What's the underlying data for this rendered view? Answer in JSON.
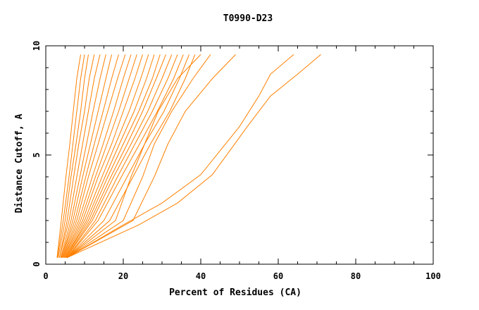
{
  "chart_data": {
    "type": "line",
    "title": "T0990-D23",
    "xlabel": "Percent of Residues (CA)",
    "ylabel": "Distance Cutoff, A",
    "xlim": [
      0,
      100
    ],
    "ylim": [
      0,
      10
    ],
    "x_ticks": [
      0,
      20,
      40,
      60,
      80,
      100
    ],
    "x_tick_labels": [
      "0",
      "20",
      "40",
      "60",
      "80",
      "100"
    ],
    "y_ticks": [
      0,
      5,
      10
    ],
    "y_tick_labels": [
      "0",
      "5",
      "10"
    ],
    "grid": false,
    "legend": "none",
    "line_color": "#ff8000",
    "series": [
      {
        "x": [
          2.9,
          4.0,
          5.2,
          6.2,
          7.1,
          8.0,
          9.0
        ],
        "y": [
          0.3,
          2.0,
          4.0,
          5.5,
          7.0,
          8.5,
          9.6
        ]
      },
      {
        "x": [
          3.0,
          4.5,
          6.0,
          7.0,
          8.0,
          9.0,
          10.0
        ],
        "y": [
          0.3,
          2.0,
          4.0,
          5.5,
          7.0,
          8.5,
          9.6
        ]
      },
      {
        "x": [
          3.2,
          5.0,
          6.5,
          7.8,
          9.0,
          10.0,
          11.0
        ],
        "y": [
          0.3,
          2.0,
          4.0,
          5.5,
          7.0,
          8.5,
          9.6
        ]
      },
      {
        "x": [
          3.5,
          5.5,
          7.2,
          8.5,
          10.0,
          11.2,
          12.5
        ],
        "y": [
          0.3,
          2.0,
          4.0,
          5.5,
          7.0,
          8.5,
          9.6
        ]
      },
      {
        "x": [
          3.5,
          6.0,
          8.0,
          9.5,
          11.0,
          12.5,
          14.0
        ],
        "y": [
          0.3,
          2.0,
          4.0,
          5.5,
          7.0,
          8.5,
          9.6
        ]
      },
      {
        "x": [
          3.8,
          6.5,
          8.8,
          10.5,
          12.2,
          14.0,
          15.5
        ],
        "y": [
          0.3,
          2.0,
          4.0,
          5.5,
          7.0,
          8.5,
          9.6
        ]
      },
      {
        "x": [
          4.0,
          7.0,
          9.5,
          11.5,
          13.5,
          15.5,
          17.0
        ],
        "y": [
          0.3,
          2.0,
          4.0,
          5.5,
          7.0,
          8.5,
          9.6
        ]
      },
      {
        "x": [
          4.0,
          7.5,
          10.3,
          12.5,
          14.8,
          17.0,
          18.8
        ],
        "y": [
          0.3,
          2.0,
          4.0,
          5.5,
          7.0,
          8.5,
          9.6
        ]
      },
      {
        "x": [
          4.2,
          8.0,
          11.0,
          13.5,
          16.0,
          18.5,
          20.5
        ],
        "y": [
          0.3,
          2.0,
          4.0,
          5.5,
          7.0,
          8.5,
          9.6
        ]
      },
      {
        "x": [
          4.3,
          8.5,
          12.0,
          14.8,
          17.5,
          20.0,
          22.0
        ],
        "y": [
          0.3,
          2.0,
          4.0,
          5.5,
          7.0,
          8.5,
          9.6
        ]
      },
      {
        "x": [
          4.5,
          9.0,
          12.8,
          15.8,
          18.8,
          21.5,
          23.5
        ],
        "y": [
          0.3,
          2.0,
          4.0,
          5.5,
          7.0,
          8.5,
          9.6
        ]
      },
      {
        "x": [
          4.6,
          9.5,
          13.5,
          17.0,
          20.0,
          23.0,
          25.0
        ],
        "y": [
          0.3,
          2.0,
          4.0,
          5.5,
          7.0,
          8.5,
          9.6
        ]
      },
      {
        "x": [
          4.8,
          10.0,
          14.5,
          18.0,
          21.5,
          24.5,
          26.5
        ],
        "y": [
          0.3,
          2.0,
          4.0,
          5.5,
          7.0,
          8.5,
          9.6
        ]
      },
      {
        "x": [
          5.0,
          10.5,
          15.3,
          19.0,
          22.8,
          26.0,
          28.0
        ],
        "y": [
          0.3,
          2.0,
          4.0,
          5.5,
          7.0,
          8.5,
          9.6
        ]
      },
      {
        "x": [
          5.0,
          11.0,
          16.0,
          20.0,
          24.0,
          27.5,
          29.5
        ],
        "y": [
          0.3,
          2.0,
          4.0,
          5.5,
          7.0,
          8.5,
          9.6
        ]
      },
      {
        "x": [
          5.2,
          11.5,
          16.8,
          21.0,
          25.0,
          28.5,
          31.0
        ],
        "y": [
          0.3,
          2.0,
          4.0,
          5.5,
          7.0,
          8.5,
          9.6
        ]
      },
      {
        "x": [
          5.3,
          12.0,
          17.5,
          22.0,
          26.3,
          30.0,
          32.5
        ],
        "y": [
          0.3,
          2.0,
          4.0,
          5.5,
          7.0,
          8.5,
          9.6
        ]
      },
      {
        "x": [
          5.5,
          12.8,
          18.5,
          23.0,
          27.5,
          31.5,
          34.0
        ],
        "y": [
          0.3,
          2.0,
          4.0,
          5.5,
          7.0,
          8.5,
          9.6
        ]
      },
      {
        "x": [
          5.5,
          13.5,
          19.5,
          24.2,
          28.8,
          33.0,
          35.5
        ],
        "y": [
          0.3,
          2.0,
          4.0,
          5.5,
          7.0,
          8.5,
          9.6
        ]
      },
      {
        "x": [
          5.5,
          15.0,
          21.0,
          25.5,
          30.5,
          34.5,
          37.0
        ],
        "y": [
          0.3,
          2.0,
          4.0,
          5.5,
          7.0,
          8.5,
          9.6
        ]
      },
      {
        "x": [
          5.5,
          16.5,
          22.5,
          27.0,
          32.0,
          36.0,
          38.5
        ],
        "y": [
          0.3,
          2.0,
          4.0,
          5.5,
          7.0,
          8.5,
          9.6
        ]
      },
      {
        "x": [
          5.5,
          18.0,
          22.0,
          25.5,
          29.0,
          34.0,
          40.0
        ],
        "y": [
          0.3,
          2.0,
          4.0,
          5.5,
          7.0,
          8.5,
          9.6
        ]
      },
      {
        "x": [
          5.5,
          20.0,
          25.0,
          28.0,
          32.5,
          38.0,
          42.5
        ],
        "y": [
          0.3,
          2.0,
          4.0,
          5.5,
          7.0,
          8.5,
          9.6
        ]
      },
      {
        "x": [
          5.5,
          22.5,
          28.0,
          31.5,
          36.0,
          43.0,
          49.0
        ],
        "y": [
          0.3,
          2.0,
          4.0,
          5.5,
          7.0,
          8.5,
          9.6
        ]
      },
      {
        "x": [
          5.5,
          20.0,
          30.0,
          40.0,
          45.0,
          50.0,
          55.0,
          58.0,
          64.0
        ],
        "y": [
          0.3,
          1.8,
          2.8,
          4.1,
          5.2,
          6.3,
          7.7,
          8.7,
          9.6
        ]
      },
      {
        "x": [
          5.5,
          24.0,
          34.0,
          43.0,
          47.5,
          52.0,
          58.0,
          65.0,
          71.0
        ],
        "y": [
          0.3,
          1.8,
          2.8,
          4.1,
          5.2,
          6.3,
          7.7,
          8.7,
          9.6
        ]
      }
    ]
  }
}
